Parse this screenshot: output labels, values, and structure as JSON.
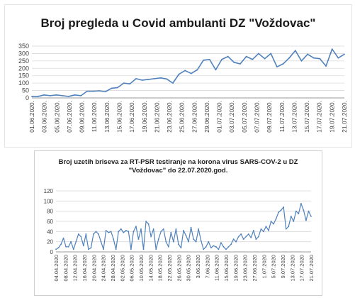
{
  "chart_data": [
    {
      "type": "line",
      "title": "Broj pregleda u Covid ambulanti DZ \"Voždovac\"",
      "ylim": [
        0,
        350
      ],
      "yticks": [
        0,
        50,
        100,
        150,
        200,
        250,
        300,
        350
      ],
      "grid": true,
      "legend": "none",
      "color": "#4f81bd",
      "xtick_labels": [
        "01.06.2020.",
        "03.06.2020.",
        "05.06.2020.",
        "07.06.2020.",
        "09.06.2020.",
        "11.06.2020.",
        "13.06.2020.",
        "15.06.2020.",
        "17.06.2020.",
        "19.06.2020.",
        "21.06.2020.",
        "23.06.2020.",
        "25.06.2020.",
        "27.06.2020.",
        "29.06.2020.",
        "01.07.2020.",
        "03.07.2020.",
        "05.07.2020.",
        "07.07.2020.",
        "09.07.2020.",
        "11.07.2020.",
        "13.07.2020.",
        "15.07.2020.",
        "17.07.2020.",
        "19.07.2020.",
        "21.07.2020."
      ],
      "x": [
        "01.06.2020.",
        "02.06.2020.",
        "03.06.2020.",
        "04.06.2020.",
        "05.06.2020.",
        "06.06.2020.",
        "07.06.2020.",
        "08.06.2020.",
        "09.06.2020.",
        "10.06.2020.",
        "11.06.2020.",
        "12.06.2020.",
        "13.06.2020.",
        "14.06.2020.",
        "15.06.2020.",
        "16.06.2020.",
        "17.06.2020.",
        "18.06.2020.",
        "19.06.2020.",
        "20.06.2020.",
        "21.06.2020.",
        "22.06.2020.",
        "23.06.2020.",
        "24.06.2020.",
        "25.06.2020.",
        "26.06.2020.",
        "27.06.2020.",
        "28.06.2020.",
        "29.06.2020.",
        "30.06.2020.",
        "01.07.2020.",
        "02.07.2020.",
        "03.07.2020.",
        "04.07.2020.",
        "05.07.2020.",
        "06.07.2020.",
        "07.07.2020.",
        "08.07.2020.",
        "09.07.2020.",
        "10.07.2020.",
        "11.07.2020.",
        "12.07.2020.",
        "13.07.2020.",
        "14.07.2020.",
        "15.07.2020.",
        "16.07.2020.",
        "17.07.2020.",
        "18.07.2020.",
        "19.07.2020.",
        "20.07.2020.",
        "21.07.2020.",
        "22.07.2020."
      ],
      "values": [
        10,
        10,
        20,
        15,
        20,
        15,
        10,
        20,
        15,
        45,
        45,
        48,
        42,
        65,
        70,
        100,
        95,
        130,
        120,
        125,
        130,
        135,
        128,
        100,
        160,
        185,
        165,
        190,
        255,
        260,
        190,
        260,
        280,
        240,
        230,
        280,
        260,
        300,
        265,
        300,
        210,
        230,
        270,
        320,
        250,
        295,
        270,
        265,
        215,
        330,
        270,
        295
      ]
    },
    {
      "type": "line",
      "title": "Broj uzetih briseva za RT-PSR testiranje na korona virus SARS-COV-2 u DZ \"Voždovac\" do 22.07.2020.god.",
      "title_line1": "Broj uzetih briseva za RT-PSR testiranje na korona virus SARS-COV-2 u DZ",
      "title_line2": "\"Voždovac\" do 22.07.2020.god.",
      "ylim": [
        0,
        120
      ],
      "yticks": [
        0,
        20,
        40,
        60,
        80,
        100,
        120
      ],
      "grid": true,
      "legend": "none",
      "color": "#4f81bd",
      "xtick_labels": [
        "04.04.2020",
        "08.04.2020",
        "12.04.2020",
        "16.04.2020",
        "20.04.2020",
        "24.04.2020",
        "28.04.2020",
        "02.05.2020",
        "06.05.2020",
        "10.05.2020",
        "14.05.2020",
        "18.05.2020",
        "22.05.2020",
        "26.05.2020",
        "30.05.2020",
        "3.06.2020",
        "7.06.2020",
        "11.06.2020",
        "15.06.2020",
        "19.06.2020",
        "23.06.2020",
        "27.06.2020",
        "1.07.2020",
        "5.07.2020",
        "9.07.2020",
        "13.07.2020",
        "17.07.2020",
        "21.07.2020"
      ],
      "values": [
        5,
        8,
        15,
        27,
        10,
        10,
        20,
        5,
        20,
        35,
        30,
        12,
        35,
        5,
        8,
        35,
        40,
        35,
        20,
        5,
        42,
        38,
        40,
        25,
        5,
        40,
        45,
        38,
        42,
        40,
        5,
        40,
        50,
        25,
        45,
        5,
        60,
        55,
        30,
        45,
        5,
        25,
        40,
        45,
        20,
        10,
        38,
        20,
        45,
        15,
        8,
        42,
        32,
        20,
        48,
        25,
        20,
        45,
        22,
        5,
        10,
        20,
        8,
        12,
        10,
        5,
        18,
        10,
        5,
        10,
        15,
        25,
        20,
        30,
        35,
        25,
        30,
        35,
        28,
        42,
        25,
        30,
        45,
        40,
        50,
        42,
        60,
        55,
        65,
        78,
        82,
        88,
        45,
        50,
        70,
        60,
        80,
        75,
        95,
        82,
        62,
        80,
        70
      ]
    }
  ]
}
